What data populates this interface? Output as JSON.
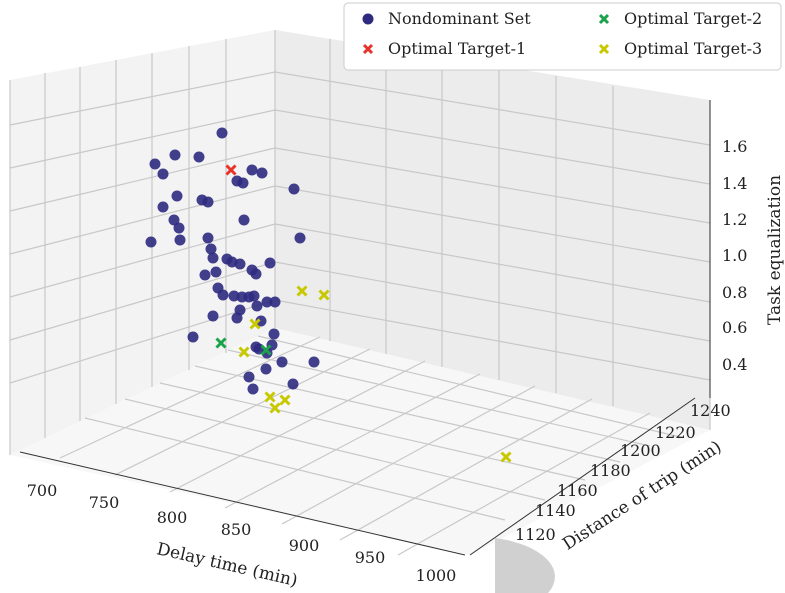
{
  "chart_data": {
    "type": "scatter",
    "projection": "3d",
    "title": "",
    "xlabel": "Delay time (min)",
    "ylabel": "Distance of trip (min)",
    "zlabel": "Task equalization",
    "xticks": [
      "700",
      "750",
      "800",
      "850",
      "900",
      "950",
      "1000"
    ],
    "yticks": [
      "1120",
      "1140",
      "1160",
      "1180",
      "1200",
      "1220",
      "1240"
    ],
    "zticks": [
      "0.4",
      "0.6",
      "0.8",
      "1.0",
      "1.2",
      "1.4",
      "1.6"
    ],
    "grid": true,
    "legend_position": "top-right",
    "legend": [
      {
        "label": "Nondominant Set",
        "marker": "circle",
        "color": "#2e2a7f"
      },
      {
        "label": "Optimal Target-1",
        "marker": "x",
        "color": "#e8332a"
      },
      {
        "label": "Optimal Target-2",
        "marker": "x",
        "color": "#1aa34a"
      },
      {
        "label": "Optimal Target-3",
        "marker": "x",
        "color": "#c8c800"
      }
    ],
    "series": [
      {
        "name": "Nondominant Set",
        "color": "#2e2a7f",
        "points": [
          [
            222,
            133
          ],
          [
            155,
            164
          ],
          [
            175,
            155
          ],
          [
            199,
            157
          ],
          [
            163,
            174
          ],
          [
            202,
            200
          ],
          [
            208,
            202
          ],
          [
            237,
            181
          ],
          [
            243,
            183
          ],
          [
            252,
            170
          ],
          [
            262,
            173
          ],
          [
            294,
            189
          ],
          [
            151,
            242
          ],
          [
            177,
            196
          ],
          [
            180,
            240
          ],
          [
            163,
            207
          ],
          [
            174,
            220
          ],
          [
            179,
            228
          ],
          [
            208,
            238
          ],
          [
            211,
            249
          ],
          [
            213,
            258
          ],
          [
            227,
            259
          ],
          [
            205,
            275
          ],
          [
            216,
            272
          ],
          [
            232,
            262
          ],
          [
            240,
            264
          ],
          [
            252,
            270
          ],
          [
            256,
            274
          ],
          [
            300,
            238
          ],
          [
            244,
            220
          ],
          [
            270,
            263
          ],
          [
            218,
            288
          ],
          [
            223,
            295
          ],
          [
            234,
            296
          ],
          [
            242,
            297
          ],
          [
            249,
            297
          ],
          [
            254,
            296
          ],
          [
            257,
            306
          ],
          [
            267,
            302
          ],
          [
            275,
            302
          ],
          [
            240,
            310
          ],
          [
            237,
            318
          ],
          [
            213,
            316
          ],
          [
            193,
            337
          ],
          [
            261,
            321
          ],
          [
            274,
            334
          ],
          [
            272,
            345
          ],
          [
            259,
            349
          ],
          [
            256,
            347
          ],
          [
            267,
            353
          ],
          [
            282,
            362
          ],
          [
            314,
            362
          ],
          [
            266,
            369
          ],
          [
            249,
            377
          ],
          [
            293,
            384
          ],
          [
            253,
            389
          ]
        ]
      },
      {
        "name": "Optimal Target-1",
        "color": "#e8332a",
        "points": [
          [
            231,
            170
          ]
        ]
      },
      {
        "name": "Optimal Target-2",
        "color": "#1aa34a",
        "points": [
          [
            221,
            343
          ],
          [
            266,
            350
          ]
        ]
      },
      {
        "name": "Optimal Target-3",
        "color": "#c8c800",
        "points": [
          [
            255,
            324
          ],
          [
            244,
            352
          ],
          [
            270,
            397
          ],
          [
            275,
            408
          ],
          [
            285,
            400
          ],
          [
            302,
            291
          ],
          [
            324,
            295
          ],
          [
            506,
            457
          ]
        ]
      }
    ]
  }
}
